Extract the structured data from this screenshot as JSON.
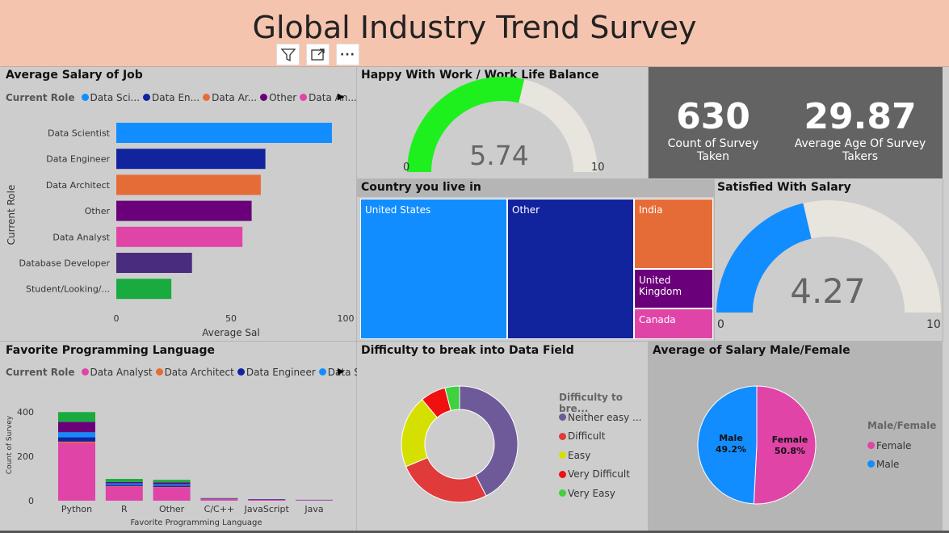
{
  "header": {
    "title": "Global Industry Trend Survey",
    "filter_icon": "funnel-icon",
    "focus_icon": "expand-icon",
    "more_icon": "ellipsis-icon"
  },
  "colors": {
    "header_bg": "#f5c4ae",
    "panel_bg": "#cdcdcd",
    "kpi_bg": "#636363"
  },
  "salary_panel": {
    "title": "Average Salary of Job",
    "legend_title": "Current Role",
    "legend": [
      {
        "label": "Data Sci...",
        "color": "#118dff"
      },
      {
        "label": "Data En...",
        "color": "#12239e"
      },
      {
        "label": "Data Ar...",
        "color": "#e66c37"
      },
      {
        "label": "Other",
        "color": "#6b007b"
      },
      {
        "label": "Data An...",
        "color": "#e044a7"
      }
    ],
    "chart_data": {
      "type": "bar",
      "orientation": "horizontal",
      "categories": [
        "Data Scientist",
        "Data Engineer",
        "Data Architect",
        "Other",
        "Data Analyst",
        "Database Developer",
        "Student/Looking/..."
      ],
      "values": [
        94,
        65,
        63,
        59,
        55,
        33,
        24
      ],
      "colors": [
        "#118dff",
        "#12239e",
        "#e66c37",
        "#6b007b",
        "#e044a7",
        "#4a2c7e",
        "#1aab40"
      ],
      "xlabel": "Average Sal",
      "ylabel": "Current Role",
      "xticks": [
        "0",
        "50",
        "100"
      ],
      "xlim": [
        0,
        100
      ]
    }
  },
  "happy_panel": {
    "title": "Happy With Work / Work Life Balance",
    "value": "5.74",
    "min": "0",
    "max": "10",
    "fraction": 0.574,
    "fill": "#1ef01e",
    "track": "#e8e4de"
  },
  "kpis": [
    {
      "value": "630",
      "label": "Count of Survey Taken"
    },
    {
      "value": "29.87",
      "label": "Average Age Of Survey Takers"
    }
  ],
  "country_panel": {
    "title": "Country you live in",
    "cells": [
      "United States",
      "Other",
      "India",
      "United Kingdom",
      "Canada"
    ],
    "colors": [
      "#118dff",
      "#12239e",
      "#e66c37",
      "#6b007b",
      "#e044a7"
    ]
  },
  "salary_sat_panel": {
    "title": "Satisfied With Salary",
    "value": "4.27",
    "min": "0",
    "max": "10",
    "fraction": 0.427,
    "fill": "#118dff",
    "track": "#e8e4de"
  },
  "lang_panel": {
    "title": "Favorite Programming Language",
    "legend_title": "Current Role",
    "legend": [
      {
        "label": "Data Analyst",
        "color": "#e044a7"
      },
      {
        "label": "Data Architect",
        "color": "#e66c37"
      },
      {
        "label": "Data Engineer",
        "color": "#12239e"
      },
      {
        "label": "Data Scientist",
        "color": "#118dff"
      }
    ],
    "chart_data": {
      "type": "bar",
      "stacked": true,
      "categories": [
        "Python",
        "R",
        "Other",
        "C/C++",
        "JavaScript",
        "Java"
      ],
      "series": [
        {
          "name": "Data Analyst",
          "color": "#e044a7",
          "values": [
            260,
            64,
            60,
            8,
            4,
            2
          ]
        },
        {
          "name": "Data Architect",
          "color": "#e66c37",
          "values": [
            6,
            2,
            2,
            0,
            0,
            0
          ]
        },
        {
          "name": "Data Engineer",
          "color": "#12239e",
          "values": [
            20,
            6,
            6,
            1,
            2,
            0
          ]
        },
        {
          "name": "Data Scientist",
          "color": "#118dff",
          "values": [
            22,
            6,
            6,
            1,
            0,
            1
          ]
        },
        {
          "color": "#6b007b",
          "values": [
            47,
            6,
            8,
            1,
            1,
            1
          ]
        },
        {
          "color": "#1aab40",
          "values": [
            44,
            14,
            12,
            1,
            0,
            0
          ]
        }
      ],
      "xlabel": "Favorite Programming Language",
      "ylabel": "Count of Survey",
      "yticks": [
        "0",
        "200",
        "400"
      ],
      "ylim": [
        0,
        440
      ]
    }
  },
  "difficulty_panel": {
    "title": "Difficulty to break into Data Field",
    "legend_title": "Difficulty to bre...",
    "chart_data": {
      "type": "pie",
      "donut": true,
      "labels": [
        "Neither easy ...",
        "Difficult",
        "Easy",
        "Very Difficult",
        "Very Easy"
      ],
      "values": [
        42,
        26,
        20,
        7,
        4
      ],
      "colors": [
        "#6e5a99",
        "#e03a3a",
        "#d6e000",
        "#f01010",
        "#3fd13f"
      ]
    }
  },
  "gender_panel": {
    "title": "Average of Salary Male/Female",
    "legend_title": "Male/Female",
    "chart_data": {
      "type": "pie",
      "labels": [
        "Female",
        "Male"
      ],
      "values": [
        50.8,
        49.2
      ],
      "value_labels": [
        "50.8%",
        "49.2%"
      ],
      "colors": [
        "#e044a7",
        "#118dff"
      ]
    }
  }
}
